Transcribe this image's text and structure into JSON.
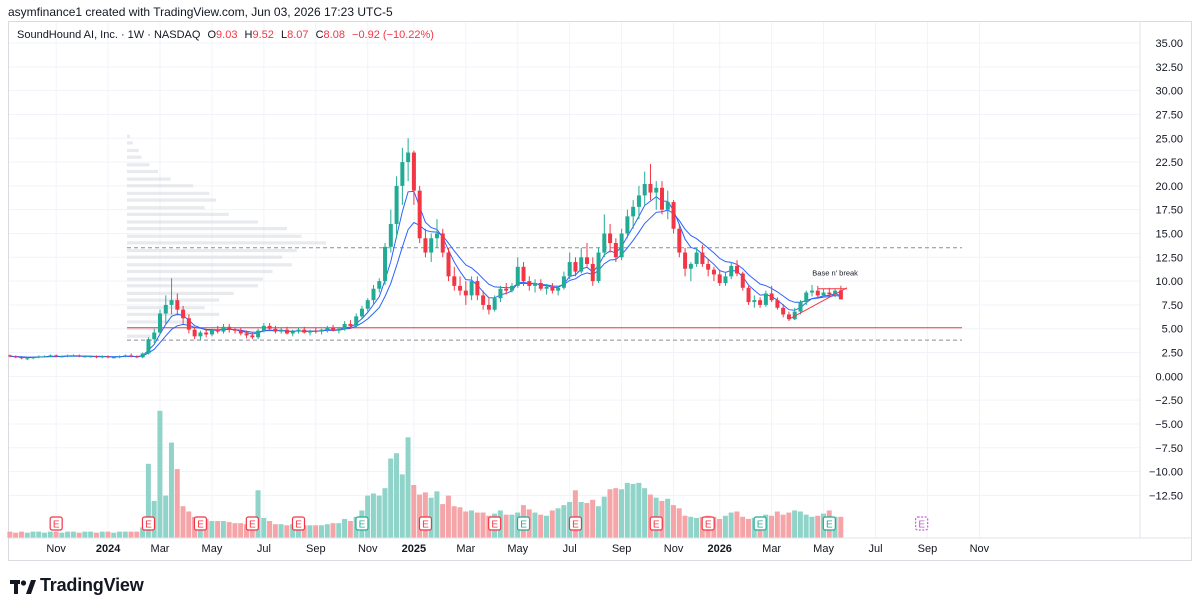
{
  "credit": "asymfinance1 created with TradingView.com, Jun 03, 2026 17:23 UTC-5",
  "legend": {
    "symbol": "SoundHound AI, Inc. · 1W · NASDAQ",
    "o_label": "O",
    "o_value": "9.03",
    "h_label": "H",
    "h_value": "9.52",
    "l_label": "L",
    "l_value": "8.07",
    "c_label": "C",
    "c_value": "8.08",
    "change": "−0.92 (−10.22%)"
  },
  "footer": {
    "brand": "TradingView"
  },
  "colors": {
    "up": "#22ab94",
    "down": "#f23645",
    "vol_up": "#8fd3c9",
    "vol_down": "#f5a4a8",
    "ma_fast": "#2962ff",
    "ma_slow": "#2962ff",
    "support": "#f23645",
    "earnings": "#f23645",
    "earnings_up": "#22ab94"
  },
  "chart_data": {
    "type": "candlestick",
    "interval": "1W",
    "y_axis": {
      "min": -15,
      "max": 36,
      "ticks": [
        35,
        32.5,
        30,
        27.5,
        25,
        22.5,
        20,
        17.5,
        15,
        12.5,
        10,
        7.5,
        5,
        2.5,
        0,
        -2.5,
        -5,
        -7.5,
        -10,
        -12.5
      ],
      "tick_labels": [
        "35.00",
        "32.50",
        "30.00",
        "27.50",
        "25.00",
        "22.50",
        "20.00",
        "17.50",
        "15.00",
        "12.50",
        "10.00",
        "7.50",
        "5.00",
        "2.50",
        "0.000",
        "−2.50",
        "−5.00",
        "−7.50",
        "−10.00",
        "−12.50"
      ]
    },
    "x_axis": {
      "labels": [
        {
          "text": "Nov",
          "week": 8,
          "bold": false
        },
        {
          "text": "2024",
          "week": 17,
          "bold": true
        },
        {
          "text": "Mar",
          "week": 26,
          "bold": false
        },
        {
          "text": "May",
          "week": 35,
          "bold": false
        },
        {
          "text": "Jul",
          "week": 44,
          "bold": false
        },
        {
          "text": "Sep",
          "week": 53,
          "bold": false
        },
        {
          "text": "Nov",
          "week": 62,
          "bold": false
        },
        {
          "text": "2025",
          "week": 70,
          "bold": true
        },
        {
          "text": "Mar",
          "week": 79,
          "bold": false
        },
        {
          "text": "May",
          "week": 88,
          "bold": false
        },
        {
          "text": "Jul",
          "week": 97,
          "bold": false
        },
        {
          "text": "Sep",
          "week": 106,
          "bold": false
        },
        {
          "text": "Nov",
          "week": 115,
          "bold": false
        },
        {
          "text": "2026",
          "week": 123,
          "bold": true
        },
        {
          "text": "Mar",
          "week": 132,
          "bold": false
        },
        {
          "text": "May",
          "week": 141,
          "bold": false
        },
        {
          "text": "Jul",
          "week": 150,
          "bold": false
        },
        {
          "text": "Sep",
          "week": 159,
          "bold": false
        },
        {
          "text": "Nov",
          "week": 168,
          "bold": false
        }
      ]
    },
    "candles": [
      [
        2.2,
        2.3,
        2.0,
        2.1
      ],
      [
        2.1,
        2.2,
        1.9,
        2.0
      ],
      [
        2.0,
        2.1,
        1.8,
        1.9
      ],
      [
        1.9,
        2.0,
        1.7,
        1.9
      ],
      [
        1.9,
        2.1,
        1.8,
        2.0
      ],
      [
        2.0,
        2.2,
        1.9,
        2.1
      ],
      [
        2.1,
        2.2,
        2.0,
        2.1
      ],
      [
        2.1,
        2.3,
        2.0,
        2.2
      ],
      [
        2.2,
        2.3,
        2.0,
        2.1
      ],
      [
        2.1,
        2.2,
        2.0,
        2.1
      ],
      [
        2.1,
        2.3,
        2.0,
        2.2
      ],
      [
        2.2,
        2.3,
        2.1,
        2.2
      ],
      [
        2.2,
        2.3,
        2.0,
        2.1
      ],
      [
        2.1,
        2.2,
        2.0,
        2.1
      ],
      [
        2.1,
        2.2,
        2.0,
        2.1
      ],
      [
        2.1,
        2.2,
        1.9,
        2.0
      ],
      [
        2.0,
        2.2,
        1.9,
        2.1
      ],
      [
        2.1,
        2.2,
        1.9,
        2.0
      ],
      [
        2.0,
        2.1,
        1.9,
        2.0
      ],
      [
        2.0,
        2.2,
        1.9,
        2.1
      ],
      [
        2.1,
        2.3,
        2.0,
        2.2
      ],
      [
        2.2,
        2.4,
        2.0,
        2.1
      ],
      [
        2.1,
        2.2,
        1.9,
        2.0
      ],
      [
        2.0,
        2.5,
        1.9,
        2.4
      ],
      [
        2.4,
        4.1,
        2.3,
        3.9
      ],
      [
        3.9,
        5.0,
        3.5,
        4.6
      ],
      [
        4.6,
        7.0,
        4.4,
        6.6
      ],
      [
        6.6,
        8.5,
        5.5,
        7.5
      ],
      [
        7.5,
        10.3,
        6.5,
        8.0
      ],
      [
        8.0,
        8.7,
        6.4,
        7.0
      ],
      [
        7.0,
        7.4,
        5.5,
        6.1
      ],
      [
        6.1,
        6.5,
        4.5,
        4.9
      ],
      [
        4.9,
        5.2,
        3.9,
        4.2
      ],
      [
        4.2,
        4.8,
        3.8,
        4.6
      ],
      [
        4.6,
        5.0,
        4.1,
        4.4
      ],
      [
        4.4,
        5.0,
        4.2,
        4.9
      ],
      [
        4.9,
        5.3,
        4.5,
        4.7
      ],
      [
        4.7,
        5.5,
        4.5,
        5.2
      ],
      [
        5.2,
        5.5,
        4.6,
        4.9
      ],
      [
        4.9,
        5.1,
        4.5,
        4.8
      ],
      [
        4.8,
        5.1,
        4.3,
        4.5
      ],
      [
        4.5,
        4.8,
        4.0,
        4.3
      ],
      [
        4.3,
        4.6,
        3.9,
        4.1
      ],
      [
        4.1,
        5.0,
        3.9,
        4.8
      ],
      [
        4.8,
        5.6,
        4.6,
        5.3
      ],
      [
        5.3,
        5.6,
        4.8,
        5.0
      ],
      [
        5.0,
        5.3,
        4.5,
        4.7
      ],
      [
        4.7,
        5.1,
        4.5,
        4.9
      ],
      [
        4.9,
        5.2,
        4.4,
        4.5
      ],
      [
        4.5,
        4.9,
        4.2,
        4.7
      ],
      [
        4.7,
        5.1,
        4.5,
        4.9
      ],
      [
        4.9,
        5.2,
        4.5,
        4.6
      ],
      [
        4.6,
        4.9,
        4.3,
        4.8
      ],
      [
        4.8,
        5.1,
        4.5,
        4.7
      ],
      [
        4.7,
        5.0,
        4.4,
        4.9
      ],
      [
        4.9,
        5.3,
        4.6,
        5.1
      ],
      [
        5.1,
        5.4,
        4.7,
        4.8
      ],
      [
        4.8,
        5.2,
        4.5,
        5.0
      ],
      [
        5.0,
        5.8,
        4.8,
        5.5
      ],
      [
        5.5,
        5.9,
        5.0,
        5.3
      ],
      [
        5.3,
        6.6,
        5.1,
        6.3
      ],
      [
        6.3,
        7.4,
        6.0,
        7.1
      ],
      [
        7.1,
        8.2,
        6.8,
        8.0
      ],
      [
        8.0,
        9.6,
        7.6,
        9.2
      ],
      [
        9.2,
        10.3,
        8.8,
        10.0
      ],
      [
        10.0,
        14.0,
        9.6,
        13.6
      ],
      [
        13.6,
        17.5,
        13.0,
        16.0
      ],
      [
        16.0,
        21.0,
        14.5,
        20.0
      ],
      [
        20.0,
        24.0,
        18.0,
        22.5
      ],
      [
        22.5,
        25.0,
        20.5,
        23.5
      ],
      [
        23.5,
        23.7,
        18.0,
        19.5
      ],
      [
        19.5,
        20.0,
        14.0,
        14.5
      ],
      [
        14.5,
        15.5,
        12.5,
        13.0
      ],
      [
        13.0,
        15.0,
        12.0,
        14.5
      ],
      [
        14.5,
        16.5,
        13.5,
        15.0
      ],
      [
        15.0,
        15.5,
        12.5,
        13.0
      ],
      [
        13.0,
        13.5,
        10.0,
        10.5
      ],
      [
        10.5,
        11.5,
        9.0,
        9.5
      ],
      [
        9.5,
        10.5,
        8.5,
        9.0
      ],
      [
        9.0,
        10.0,
        7.5,
        8.5
      ],
      [
        8.5,
        10.5,
        8.0,
        10.0
      ],
      [
        10.0,
        10.5,
        8.0,
        8.5
      ],
      [
        8.5,
        9.0,
        7.0,
        7.5
      ],
      [
        7.5,
        8.2,
        6.5,
        7.0
      ],
      [
        7.0,
        8.5,
        6.8,
        8.2
      ],
      [
        8.2,
        9.5,
        7.8,
        9.2
      ],
      [
        9.2,
        9.8,
        8.6,
        9.0
      ],
      [
        9.0,
        9.8,
        8.8,
        9.5
      ],
      [
        9.5,
        12.5,
        9.3,
        11.5
      ],
      [
        11.5,
        12.0,
        9.5,
        10.0
      ],
      [
        10.0,
        10.5,
        9.0,
        9.5
      ],
      [
        9.5,
        10.2,
        8.8,
        9.8
      ],
      [
        9.8,
        10.2,
        9.0,
        9.2
      ],
      [
        9.2,
        9.7,
        8.6,
        9.4
      ],
      [
        9.4,
        9.8,
        8.7,
        9.0
      ],
      [
        9.0,
        9.5,
        8.5,
        9.3
      ],
      [
        9.3,
        11.0,
        9.1,
        10.5
      ],
      [
        10.5,
        13.0,
        10.2,
        12.0
      ],
      [
        12.0,
        12.5,
        10.5,
        11.0
      ],
      [
        11.0,
        13.5,
        10.8,
        12.5
      ],
      [
        12.5,
        14.0,
        11.5,
        11.8
      ],
      [
        11.8,
        12.5,
        9.5,
        10.0
      ],
      [
        10.0,
        13.5,
        9.8,
        13.0
      ],
      [
        13.0,
        17.0,
        12.5,
        15.0
      ],
      [
        15.0,
        16.0,
        13.0,
        14.0
      ],
      [
        14.0,
        14.5,
        12.0,
        12.5
      ],
      [
        12.5,
        15.5,
        12.2,
        15.0
      ],
      [
        15.0,
        17.5,
        14.5,
        16.8
      ],
      [
        16.8,
        18.5,
        15.5,
        17.8
      ],
      [
        17.8,
        20.0,
        16.5,
        19.0
      ],
      [
        19.0,
        21.5,
        18.0,
        20.2
      ],
      [
        20.2,
        22.3,
        18.5,
        19.3
      ],
      [
        19.3,
        20.5,
        17.5,
        19.8
      ],
      [
        19.8,
        20.5,
        17.0,
        17.5
      ],
      [
        17.5,
        19.5,
        16.5,
        18.3
      ],
      [
        18.3,
        18.5,
        15.0,
        15.5
      ],
      [
        15.5,
        16.0,
        12.5,
        13.0
      ],
      [
        13.0,
        13.5,
        10.5,
        11.3
      ],
      [
        11.3,
        12.0,
        10.0,
        11.8
      ],
      [
        11.8,
        13.5,
        11.5,
        13.0
      ],
      [
        13.0,
        13.8,
        11.5,
        11.8
      ],
      [
        11.8,
        12.3,
        10.5,
        11.2
      ],
      [
        11.2,
        11.5,
        10.0,
        10.7
      ],
      [
        10.7,
        11.2,
        9.5,
        9.8
      ],
      [
        9.8,
        11.0,
        9.5,
        10.5
      ],
      [
        10.5,
        12.0,
        10.2,
        11.6
      ],
      [
        11.6,
        12.2,
        10.5,
        10.8
      ],
      [
        10.8,
        11.0,
        9.0,
        9.3
      ],
      [
        9.3,
        9.5,
        7.5,
        7.8
      ],
      [
        7.8,
        8.5,
        7.2,
        8.0
      ],
      [
        8.0,
        8.3,
        7.2,
        7.5
      ],
      [
        7.5,
        9.0,
        7.3,
        8.7
      ],
      [
        8.7,
        9.5,
        7.8,
        8.0
      ],
      [
        8.0,
        8.3,
        7.0,
        7.2
      ],
      [
        7.2,
        7.6,
        6.2,
        6.5
      ],
      [
        6.5,
        6.8,
        5.8,
        6.0
      ],
      [
        6.0,
        7.2,
        5.9,
        6.8
      ],
      [
        6.8,
        8.0,
        6.5,
        7.8
      ],
      [
        7.8,
        9.0,
        7.5,
        8.8
      ],
      [
        8.8,
        9.6,
        8.4,
        9.0
      ],
      [
        9.0,
        9.5,
        8.2,
        8.5
      ],
      [
        8.5,
        9.2,
        8.3,
        8.8
      ],
      [
        8.8,
        9.3,
        8.4,
        8.6
      ],
      [
        8.6,
        9.2,
        8.3,
        9.0
      ],
      [
        9.03,
        9.52,
        8.07,
        8.08
      ]
    ],
    "volume": [
      0.6,
      0.5,
      0.6,
      0.5,
      0.6,
      0.6,
      0.5,
      0.6,
      0.6,
      0.5,
      0.6,
      0.6,
      0.5,
      0.6,
      0.6,
      0.5,
      0.6,
      0.6,
      0.5,
      0.6,
      0.6,
      0.6,
      0.6,
      1.0,
      7.0,
      3.5,
      12.0,
      4.0,
      9.0,
      6.5,
      3.0,
      2.5,
      2.0,
      1.8,
      1.8,
      1.6,
      1.6,
      1.6,
      1.5,
      1.4,
      1.4,
      1.3,
      1.6,
      4.5,
      1.9,
      1.6,
      1.3,
      1.3,
      1.2,
      1.3,
      1.3,
      1.2,
      1.2,
      1.2,
      1.2,
      1.3,
      1.4,
      1.4,
      1.8,
      1.6,
      2.0,
      2.6,
      4.0,
      4.2,
      4.0,
      4.7,
      7.5,
      8.0,
      6.0,
      9.5,
      5.0,
      4.1,
      4.3,
      3.8,
      4.4,
      3.2,
      4.0,
      3.0,
      2.9,
      2.5,
      2.6,
      2.4,
      2.4,
      2.1,
      2.3,
      2.6,
      2.2,
      2.2,
      2.4,
      3.1,
      2.7,
      2.4,
      2.2,
      2.1,
      2.6,
      2.8,
      3.1,
      3.4,
      4.5,
      3.4,
      3.3,
      3.6,
      3.0,
      3.9,
      4.6,
      4.7,
      4.6,
      5.2,
      5.1,
      5.2,
      4.7,
      4.1,
      3.8,
      3.5,
      3.7,
      3.1,
      2.8,
      2.1,
      2.0,
      1.9,
      2.0,
      2.1,
      2.0,
      1.8,
      2.1,
      2.4,
      2.5,
      2.0,
      1.8,
      1.9,
      1.8,
      2.2,
      2.1,
      2.5,
      2.2,
      2.4,
      2.6,
      2.5,
      2.2,
      2.0,
      2.1,
      2.3,
      2.6,
      2.0,
      2.0
    ],
    "volume_profile": [
      [
        25.0,
        0.3
      ],
      [
        24.3,
        0.6
      ],
      [
        23.5,
        1.2
      ],
      [
        22.8,
        1.5
      ],
      [
        22.0,
        2.3
      ],
      [
        21.3,
        3.2
      ],
      [
        20.5,
        4.5
      ],
      [
        19.8,
        6.8
      ],
      [
        19.0,
        8.5
      ],
      [
        18.3,
        9.2
      ],
      [
        17.5,
        8.0
      ],
      [
        16.8,
        10.5
      ],
      [
        16.0,
        13.5
      ],
      [
        15.3,
        16.5
      ],
      [
        14.5,
        18.0
      ],
      [
        13.8,
        20.5
      ],
      [
        13.0,
        17.5
      ],
      [
        12.3,
        16.0
      ],
      [
        11.5,
        17.0
      ],
      [
        10.8,
        15.0
      ],
      [
        10.0,
        14.0
      ],
      [
        9.3,
        13.5
      ],
      [
        8.5,
        11.0
      ],
      [
        7.8,
        9.5
      ],
      [
        7.0,
        8.0
      ],
      [
        6.3,
        9.5
      ],
      [
        5.5,
        6.5
      ],
      [
        4.8,
        3.5
      ],
      [
        4.0,
        2.5
      ]
    ],
    "support_line": 5.1,
    "resistance_dashed": 13.5,
    "lower_dashed": 3.8,
    "annotation": "Base n' break",
    "earnings_weeks": [
      8,
      24,
      33,
      42,
      50,
      61,
      72,
      84,
      89,
      98,
      112,
      121,
      130,
      142,
      158
    ],
    "earnings_up_weeks": [
      61,
      89,
      130,
      142
    ],
    "future_earnings_week": 158,
    "future_earnings_label": "E"
  }
}
